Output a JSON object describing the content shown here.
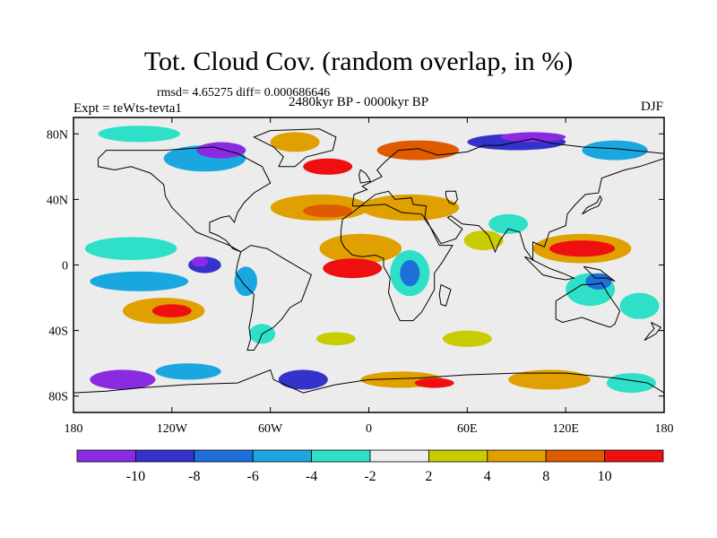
{
  "chart_data": {
    "type": "heatmap",
    "title": "Tot. Cloud Cov. (random overlap, in %)",
    "stats_line": "rmsd= 4.65275 diff= 0.000686646",
    "experiment": "Expt = teWts-tevta1",
    "period": "2480kyr BP - 0000kyr BP",
    "season": "DJF",
    "lon_range": [
      -180,
      180
    ],
    "lat_range": [
      -90,
      90
    ],
    "x_ticks": [
      {
        "value": -180,
        "label": "180"
      },
      {
        "value": -120,
        "label": "120W"
      },
      {
        "value": -60,
        "label": "60W"
      },
      {
        "value": 0,
        "label": "0"
      },
      {
        "value": 60,
        "label": "60E"
      },
      {
        "value": 120,
        "label": "120E"
      },
      {
        "value": 180,
        "label": "180"
      }
    ],
    "y_ticks": [
      {
        "value": 80,
        "label": "80N"
      },
      {
        "value": 40,
        "label": "40N"
      },
      {
        "value": 0,
        "label": "0"
      },
      {
        "value": -40,
        "label": "40S"
      },
      {
        "value": -80,
        "label": "80S"
      }
    ],
    "colorbar": {
      "labels": [
        "-10",
        "-8",
        "-6",
        "-4",
        "-2",
        "2",
        "4",
        "8",
        "10"
      ],
      "bins": [
        {
          "color": "#8a2be2",
          "range": "< -10"
        },
        {
          "color": "#3333cc",
          "range": "-10 to -8"
        },
        {
          "color": "#1e6fd9",
          "range": "-8 to -6"
        },
        {
          "color": "#1aa7e0",
          "range": "-6 to -4"
        },
        {
          "color": "#2ee0c8",
          "range": "-4 to -2"
        },
        {
          "color": "#ececec",
          "range": "-2 to 2"
        },
        {
          "color": "#c8cc00",
          "range": "2 to 4"
        },
        {
          "color": "#e0a000",
          "range": "4 to 8"
        },
        {
          "color": "#e05a00",
          "range": "8 to 10"
        },
        {
          "color": "#ee1010",
          "range": "> 10"
        }
      ]
    },
    "anomaly_regions": [
      {
        "lon": -145,
        "lat": 10,
        "rx": 28,
        "ry": 7,
        "color": "#2ee0c8"
      },
      {
        "lon": -140,
        "lat": -10,
        "rx": 30,
        "ry": 6,
        "color": "#1aa7e0"
      },
      {
        "lon": -125,
        "lat": -28,
        "rx": 25,
        "ry": 8,
        "color": "#e0a000"
      },
      {
        "lon": -120,
        "lat": -28,
        "rx": 12,
        "ry": 4,
        "color": "#ee1010"
      },
      {
        "lon": -100,
        "lat": 0,
        "rx": 10,
        "ry": 5,
        "color": "#3333cc"
      },
      {
        "lon": -103,
        "lat": 2,
        "rx": 5,
        "ry": 3,
        "color": "#8a2be2"
      },
      {
        "lon": -75,
        "lat": -10,
        "rx": 7,
        "ry": 9,
        "color": "#1aa7e0"
      },
      {
        "lon": -65,
        "lat": -42,
        "rx": 8,
        "ry": 6,
        "color": "#2ee0c8"
      },
      {
        "lon": -30,
        "lat": 35,
        "rx": 30,
        "ry": 8,
        "color": "#e0a000"
      },
      {
        "lon": -25,
        "lat": 33,
        "rx": 15,
        "ry": 4,
        "color": "#e05a00"
      },
      {
        "lon": -5,
        "lat": 10,
        "rx": 25,
        "ry": 9,
        "color": "#e0a000"
      },
      {
        "lon": -10,
        "lat": -2,
        "rx": 18,
        "ry": 6,
        "color": "#ee1010"
      },
      {
        "lon": 25,
        "lat": 35,
        "rx": 30,
        "ry": 8,
        "color": "#e0a000"
      },
      {
        "lon": 25,
        "lat": -5,
        "rx": 12,
        "ry": 14,
        "color": "#2ee0c8"
      },
      {
        "lon": 25,
        "lat": -5,
        "rx": 6,
        "ry": 8,
        "color": "#1e6fd9"
      },
      {
        "lon": 70,
        "lat": 15,
        "rx": 12,
        "ry": 6,
        "color": "#c8cc00"
      },
      {
        "lon": 85,
        "lat": 25,
        "rx": 12,
        "ry": 6,
        "color": "#2ee0c8"
      },
      {
        "lon": 130,
        "lat": 10,
        "rx": 30,
        "ry": 9,
        "color": "#e0a000"
      },
      {
        "lon": 130,
        "lat": 10,
        "rx": 20,
        "ry": 5,
        "color": "#ee1010"
      },
      {
        "lon": 135,
        "lat": -15,
        "rx": 15,
        "ry": 10,
        "color": "#2ee0c8"
      },
      {
        "lon": 140,
        "lat": -10,
        "rx": 8,
        "ry": 5,
        "color": "#1e6fd9"
      },
      {
        "lon": 165,
        "lat": -25,
        "rx": 12,
        "ry": 8,
        "color": "#2ee0c8"
      },
      {
        "lon": -100,
        "lat": 65,
        "rx": 25,
        "ry": 8,
        "color": "#1aa7e0"
      },
      {
        "lon": -90,
        "lat": 70,
        "rx": 15,
        "ry": 5,
        "color": "#8a2be2"
      },
      {
        "lon": -45,
        "lat": 75,
        "rx": 15,
        "ry": 6,
        "color": "#e0a000"
      },
      {
        "lon": -25,
        "lat": 60,
        "rx": 15,
        "ry": 5,
        "color": "#ee1010"
      },
      {
        "lon": 30,
        "lat": 70,
        "rx": 25,
        "ry": 6,
        "color": "#e05a00"
      },
      {
        "lon": 90,
        "lat": 75,
        "rx": 30,
        "ry": 5,
        "color": "#3333cc"
      },
      {
        "lon": 100,
        "lat": 78,
        "rx": 20,
        "ry": 3,
        "color": "#8a2be2"
      },
      {
        "lon": 150,
        "lat": 70,
        "rx": 20,
        "ry": 6,
        "color": "#1aa7e0"
      },
      {
        "lon": -140,
        "lat": 80,
        "rx": 25,
        "ry": 5,
        "color": "#2ee0c8"
      },
      {
        "lon": -150,
        "lat": -70,
        "rx": 20,
        "ry": 6,
        "color": "#8a2be2"
      },
      {
        "lon": -110,
        "lat": -65,
        "rx": 20,
        "ry": 5,
        "color": "#1aa7e0"
      },
      {
        "lon": -40,
        "lat": -70,
        "rx": 15,
        "ry": 6,
        "color": "#3333cc"
      },
      {
        "lon": 20,
        "lat": -70,
        "rx": 25,
        "ry": 5,
        "color": "#e0a000"
      },
      {
        "lon": 40,
        "lat": -72,
        "rx": 12,
        "ry": 3,
        "color": "#ee1010"
      },
      {
        "lon": 110,
        "lat": -70,
        "rx": 25,
        "ry": 6,
        "color": "#e0a000"
      },
      {
        "lon": 160,
        "lat": -72,
        "rx": 15,
        "ry": 6,
        "color": "#2ee0c8"
      },
      {
        "lon": 60,
        "lat": -45,
        "rx": 15,
        "ry": 5,
        "color": "#c8cc00"
      },
      {
        "lon": -20,
        "lat": -45,
        "rx": 12,
        "ry": 4,
        "color": "#c8cc00"
      }
    ]
  }
}
